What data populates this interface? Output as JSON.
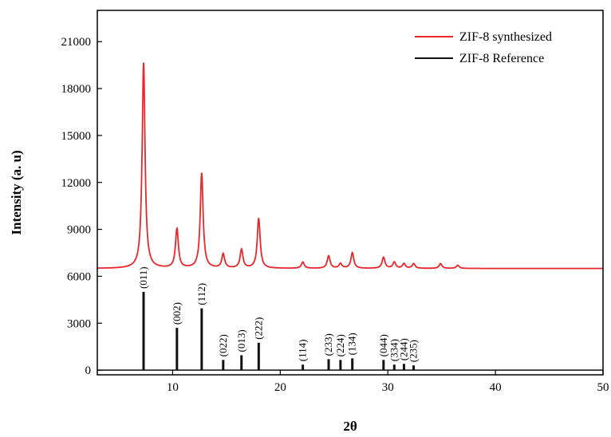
{
  "chart_data": {
    "type": "line",
    "xlabel": "2θ",
    "ylabel": "Intensity (a. u)",
    "xlim": [
      3,
      50
    ],
    "ylim": [
      -300,
      23000
    ],
    "xticks": [
      10,
      20,
      30,
      40,
      50
    ],
    "yticks": [
      0,
      3000,
      6000,
      9000,
      12000,
      15000,
      18000,
      21000
    ],
    "legend_position": "top-right",
    "series": [
      {
        "name": "ZIF-8 synthesized",
        "color": "#e8262b",
        "baseline": 6500,
        "peaks": [
          {
            "x": 7.3,
            "y": 19700
          },
          {
            "x": 10.4,
            "y": 9000
          },
          {
            "x": 12.7,
            "y": 12600
          },
          {
            "x": 14.7,
            "y": 7400
          },
          {
            "x": 16.4,
            "y": 7700
          },
          {
            "x": 18.0,
            "y": 9700
          },
          {
            "x": 22.1,
            "y": 6900
          },
          {
            "x": 24.5,
            "y": 7300
          },
          {
            "x": 25.6,
            "y": 6800
          },
          {
            "x": 26.7,
            "y": 7500
          },
          {
            "x": 29.6,
            "y": 7200
          },
          {
            "x": 30.6,
            "y": 6900
          },
          {
            "x": 31.5,
            "y": 6800
          },
          {
            "x": 32.4,
            "y": 6800
          },
          {
            "x": 34.9,
            "y": 6800
          },
          {
            "x": 36.5,
            "y": 6700
          }
        ]
      },
      {
        "name": "ZIF-8 Reference",
        "color": "#111111",
        "baseline": 0,
        "peaks": [
          {
            "x": 7.3,
            "y": 5000,
            "label": "(011)"
          },
          {
            "x": 10.4,
            "y": 2700,
            "label": "(002)"
          },
          {
            "x": 12.7,
            "y": 3950,
            "label": "(112)"
          },
          {
            "x": 14.7,
            "y": 650,
            "label": "(022)"
          },
          {
            "x": 16.4,
            "y": 950,
            "label": "(013)"
          },
          {
            "x": 18.0,
            "y": 1750,
            "label": "(222)"
          },
          {
            "x": 22.1,
            "y": 350,
            "label": "(114)"
          },
          {
            "x": 24.5,
            "y": 700,
            "label": "(233)"
          },
          {
            "x": 25.6,
            "y": 650,
            "label": "(224)"
          },
          {
            "x": 26.7,
            "y": 750,
            "label": "(134)"
          },
          {
            "x": 29.6,
            "y": 650,
            "label": "(044)"
          },
          {
            "x": 30.6,
            "y": 350,
            "label": "(334)"
          },
          {
            "x": 31.5,
            "y": 400,
            "label": "(244)"
          },
          {
            "x": 32.4,
            "y": 300,
            "label": "(235)"
          }
        ]
      }
    ]
  }
}
